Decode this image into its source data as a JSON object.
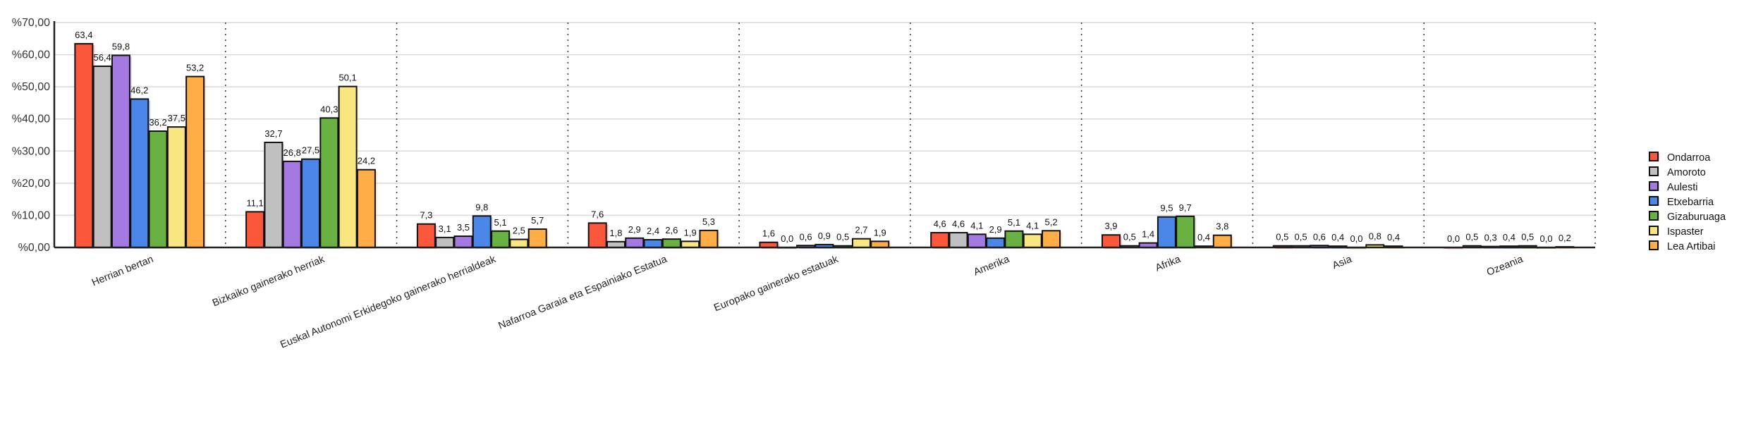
{
  "chart_data": {
    "type": "bar",
    "title": "",
    "xlabel": "",
    "ylabel": "",
    "ylim": [
      0,
      70
    ],
    "yticks": [
      "%0,00",
      "%10,00",
      "%20,00",
      "%30,00",
      "%40,00",
      "%50,00",
      "%60,00",
      "%70,00"
    ],
    "grid": true,
    "legend_position": "right",
    "categories": [
      "Herrian bertan",
      "Bizkaiko gainerako herriak",
      "Euskal Autonomi Erkidegoko gainerako herrialdeak",
      "Nafarroa Garaia eta Espainiako Estatua",
      "Europako gainerako estatuak",
      "Amerika",
      "Afrika",
      "Asia",
      "Ozeania"
    ],
    "series": [
      {
        "name": "Ondarroa",
        "color": "#fb573b",
        "values": [
          63.4,
          11.1,
          7.3,
          7.6,
          1.6,
          4.6,
          3.9,
          0.5,
          0.0
        ],
        "labels": [
          "63,4",
          "11,1",
          "7,3",
          "7,6",
          "1,6",
          "4,6",
          "3,9",
          "0,5",
          "0,0"
        ]
      },
      {
        "name": "Amoroto",
        "color": "#c0c0c0",
        "values": [
          56.4,
          32.7,
          3.1,
          1.8,
          0.0,
          4.6,
          0.5,
          0.5,
          0.5
        ],
        "labels": [
          "56,4",
          "32,7",
          "3,1",
          "1,8",
          "0,0",
          "4,6",
          "0,5",
          "0,5",
          "0,5"
        ]
      },
      {
        "name": "Aulesti",
        "color": "#a479e2",
        "values": [
          59.8,
          26.8,
          3.5,
          2.9,
          0.6,
          4.1,
          1.4,
          0.6,
          0.3
        ],
        "labels": [
          "59,8",
          "26,8",
          "3,5",
          "2,9",
          "0,6",
          "4,1",
          "1,4",
          "0,6",
          "0,3"
        ]
      },
      {
        "name": "Etxebarria",
        "color": "#4a87e8",
        "values": [
          46.2,
          27.5,
          9.8,
          2.4,
          0.9,
          2.9,
          9.5,
          0.4,
          0.4
        ],
        "labels": [
          "46,2",
          "27,5",
          "9,8",
          "2,4",
          "0,9",
          "2,9",
          "9,5",
          "0,4",
          "0,4"
        ]
      },
      {
        "name": "Gizaburuaga",
        "color": "#6ab144",
        "values": [
          36.2,
          40.3,
          5.1,
          2.6,
          0.5,
          5.1,
          9.7,
          0.0,
          0.5
        ],
        "labels": [
          "36,2",
          "40,3",
          "5,1",
          "2,6",
          "0,5",
          "5,1",
          "9,7",
          "0,0",
          "0,5"
        ]
      },
      {
        "name": "Ispaster",
        "color": "#fae681",
        "values": [
          37.5,
          50.1,
          2.5,
          1.9,
          2.7,
          4.1,
          0.4,
          0.8,
          0.0
        ],
        "labels": [
          "37,5",
          "50,1",
          "2,5",
          "1,9",
          "2,7",
          "4,1",
          "0,4",
          "0,8",
          "0,0"
        ]
      },
      {
        "name": "Lea Artibai",
        "color": "#ffad46",
        "values": [
          53.2,
          24.2,
          5.7,
          5.3,
          1.9,
          5.2,
          3.8,
          0.4,
          0.2
        ],
        "labels": [
          "53,2",
          "24,2",
          "5,7",
          "5,3",
          "1,9",
          "5,2",
          "3,8",
          "0,4",
          "0,2"
        ]
      }
    ]
  }
}
